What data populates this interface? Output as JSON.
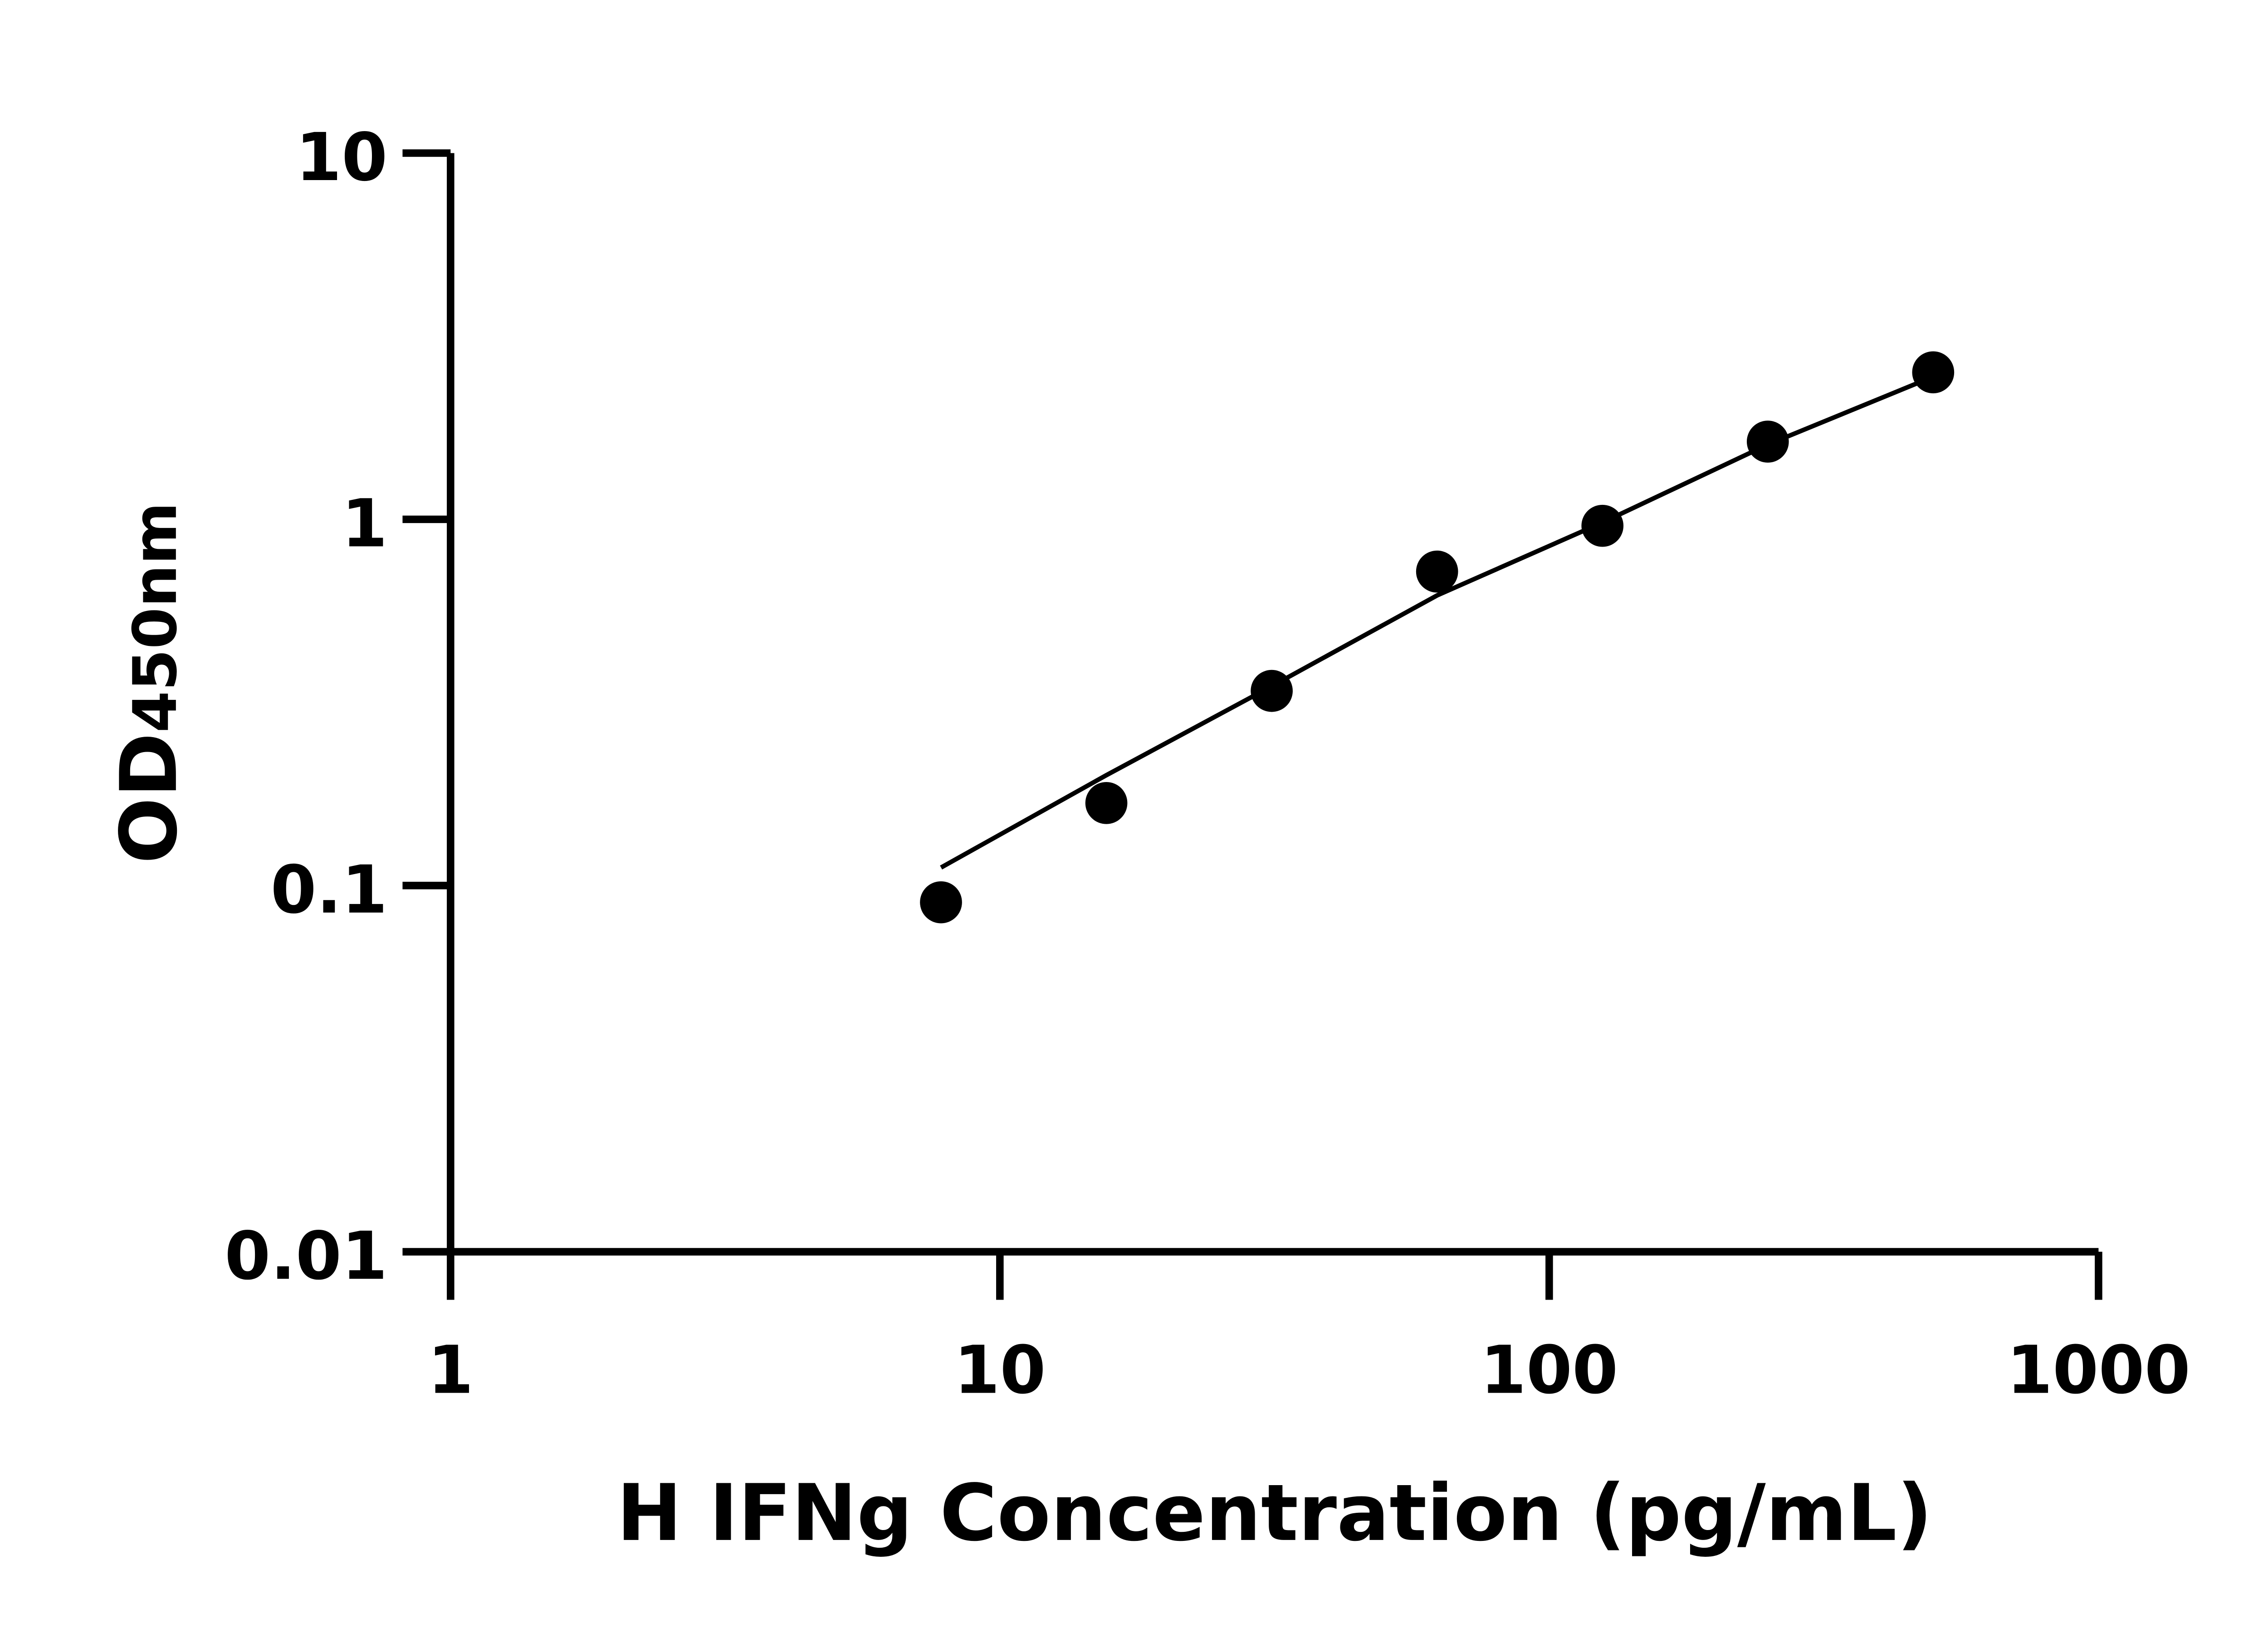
{
  "chart_data": {
    "type": "scatter",
    "xlabel": "H IFNg Concentration (pg/mL)",
    "ylabel_main": "OD",
    "ylabel_sub": "450nm",
    "x_scale": "log",
    "y_scale": "log",
    "xlim": [
      1,
      1000
    ],
    "ylim": [
      0.01,
      10
    ],
    "x_ticks": [
      1,
      10,
      100,
      1000
    ],
    "x_tick_labels": [
      "1",
      "10",
      "100",
      "1000"
    ],
    "y_ticks": [
      10,
      1,
      0.1,
      0.01
    ],
    "y_tick_labels": [
      "10",
      "1",
      "0.1",
      "0.01"
    ],
    "grid": false,
    "legend": "none",
    "points": [
      {
        "x": 7.8125,
        "y": 0.09
      },
      {
        "x": 15.625,
        "y": 0.168
      },
      {
        "x": 31.25,
        "y": 0.34
      },
      {
        "x": 62.5,
        "y": 0.72
      },
      {
        "x": 125,
        "y": 0.96
      },
      {
        "x": 250,
        "y": 1.63
      },
      {
        "x": 500,
        "y": 2.52
      }
    ],
    "fit_curve": [
      {
        "x": 7.8125,
        "y": 0.112
      },
      {
        "x": 15.625,
        "y": 0.2
      },
      {
        "x": 31.25,
        "y": 0.35
      },
      {
        "x": 62.5,
        "y": 0.62
      },
      {
        "x": 125,
        "y": 0.98
      },
      {
        "x": 250,
        "y": 1.6
      },
      {
        "x": 500,
        "y": 2.45
      }
    ],
    "colors": {
      "marker": "#000000",
      "line": "#000000",
      "axis": "#000000"
    }
  }
}
